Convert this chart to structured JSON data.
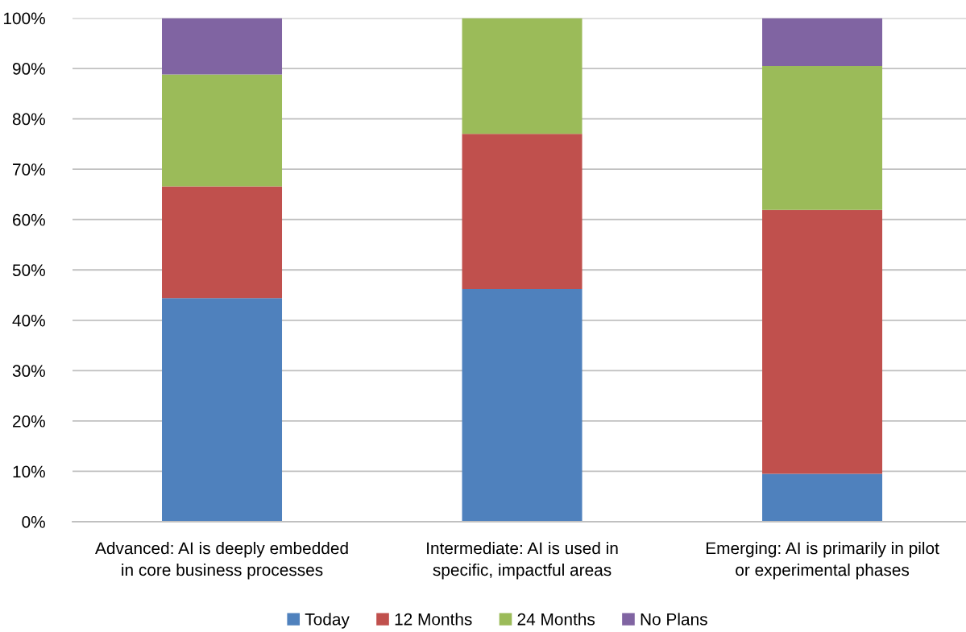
{
  "chart_data": {
    "type": "bar",
    "stacked": true,
    "categories": [
      "Advanced: AI is deeply embedded\nin core business processes",
      "Intermediate: AI is used in\nspecific, impactful areas",
      "Emerging: AI is primarily in pilot\nor experimental phases"
    ],
    "series": [
      {
        "name": "Today",
        "color": "#4f81bd",
        "values": [
          44.4,
          46.2,
          9.5
        ]
      },
      {
        "name": "12 Months",
        "color": "#c0504d",
        "values": [
          22.2,
          30.8,
          52.4
        ]
      },
      {
        "name": "24 Months",
        "color": "#9bbb59",
        "values": [
          22.2,
          23.0,
          28.6
        ]
      },
      {
        "name": "No Plans",
        "color": "#8064a2",
        "values": [
          11.2,
          0,
          9.5
        ]
      }
    ],
    "ylim": [
      0,
      100
    ],
    "yticks": [
      {
        "value": 0,
        "label": "0%"
      },
      {
        "value": 10,
        "label": "10%"
      },
      {
        "value": 20,
        "label": "20%"
      },
      {
        "value": 30,
        "label": "30%"
      },
      {
        "value": 40,
        "label": "40%"
      },
      {
        "value": 50,
        "label": "50%"
      },
      {
        "value": 60,
        "label": "60%"
      },
      {
        "value": 70,
        "label": "70%"
      },
      {
        "value": 80,
        "label": "80%"
      },
      {
        "value": 90,
        "label": "90%"
      },
      {
        "value": 100,
        "label": "100%"
      }
    ],
    "grid": "y",
    "legend": "bottom"
  }
}
